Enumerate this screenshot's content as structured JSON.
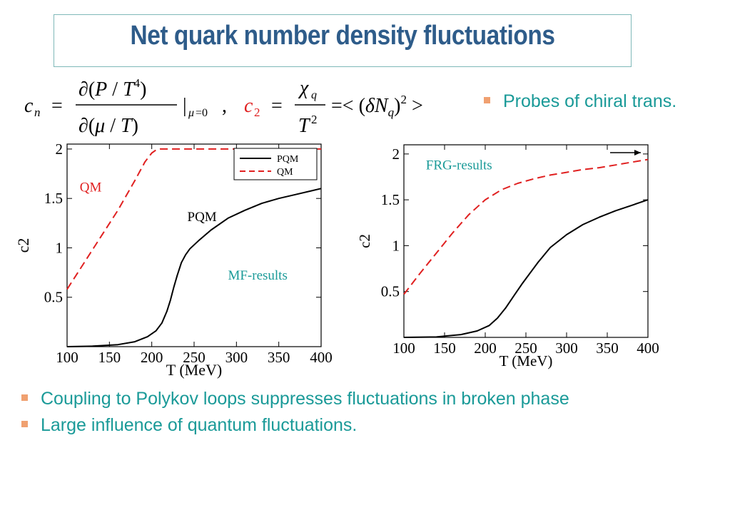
{
  "title": "Net quark number density fluctuations",
  "probe_text": "Probes of chiral trans.",
  "bullets": [
    "Coupling to Polykov loops suppresses fluctuations in broken phase",
    "Large influence of quantum fluctuations."
  ],
  "colors": {
    "title": "#2e5c8a",
    "accent": "#1a9a98",
    "bullet": "#f0a070",
    "qm": "#e02020",
    "pqm": "#000000"
  },
  "chart_data": [
    {
      "type": "line",
      "title": "",
      "xlabel": "T (MeV)",
      "ylabel": "c2",
      "xlim": [
        100,
        400
      ],
      "ylim": [
        0,
        2.05
      ],
      "xticks": [
        100,
        150,
        200,
        250,
        300,
        350,
        400
      ],
      "yticks": [
        0.5,
        1,
        1.5,
        2
      ],
      "ytick_labels": [
        "0.5",
        "1",
        "1.5",
        "2"
      ],
      "legend": "top-right",
      "annotations": [
        {
          "text": "QM",
          "x": 115,
          "y": 1.57,
          "color": "#e02020"
        },
        {
          "text": "PQM",
          "x": 242,
          "y": 1.27,
          "color": "#000000"
        },
        {
          "text": "MF-results",
          "x": 290,
          "y": 0.68,
          "color": "#1a9a98"
        }
      ],
      "series": [
        {
          "name": "PQM",
          "color": "#000000",
          "dash": false,
          "x": [
            100,
            130,
            160,
            180,
            195,
            205,
            212,
            218,
            222,
            226,
            230,
            235,
            240,
            245,
            255,
            270,
            290,
            310,
            330,
            350,
            370,
            390,
            400
          ],
          "y": [
            0.0,
            0.005,
            0.02,
            0.05,
            0.1,
            0.16,
            0.24,
            0.36,
            0.47,
            0.6,
            0.72,
            0.85,
            0.93,
            0.99,
            1.07,
            1.18,
            1.3,
            1.38,
            1.45,
            1.5,
            1.54,
            1.58,
            1.6
          ]
        },
        {
          "name": "QM",
          "color": "#e02020",
          "dash": true,
          "x": [
            100,
            130,
            160,
            180,
            192,
            200,
            205,
            210,
            220,
            250,
            300,
            350,
            400
          ],
          "y": [
            0.58,
            0.98,
            1.38,
            1.68,
            1.87,
            1.96,
            1.99,
            2.0,
            2.0,
            2.0,
            2.0,
            2.0,
            2.0
          ]
        }
      ]
    },
    {
      "type": "line",
      "title": "",
      "xlabel": "T (MeV)",
      "ylabel": "c2",
      "xlim": [
        100,
        400
      ],
      "ylim": [
        0,
        2.1
      ],
      "xticks": [
        100,
        150,
        200,
        250,
        300,
        350,
        400
      ],
      "yticks": [
        0.5,
        1,
        1.5,
        2
      ],
      "ytick_labels": [
        "0.5",
        "1",
        "1.5",
        "2"
      ],
      "legend": "none",
      "annotations": [
        {
          "text": "FRG-results",
          "x": 127,
          "y": 1.83,
          "color": "#1a9a98"
        }
      ],
      "series": [
        {
          "name": "",
          "color": "#000000",
          "dash": false,
          "x": [
            100,
            140,
            170,
            190,
            205,
            215,
            225,
            235,
            245,
            255,
            265,
            280,
            300,
            320,
            340,
            360,
            380,
            400
          ],
          "y": [
            0.0,
            0.005,
            0.03,
            0.07,
            0.13,
            0.21,
            0.32,
            0.45,
            0.58,
            0.7,
            0.82,
            0.98,
            1.12,
            1.23,
            1.31,
            1.38,
            1.44,
            1.5
          ]
        },
        {
          "name": "",
          "color": "#e02020",
          "dash": true,
          "x": [
            100,
            120,
            140,
            160,
            180,
            200,
            220,
            240,
            260,
            280,
            300,
            320,
            340,
            360,
            380,
            400
          ],
          "y": [
            0.47,
            0.7,
            0.92,
            1.14,
            1.34,
            1.5,
            1.61,
            1.68,
            1.73,
            1.77,
            1.8,
            1.83,
            1.85,
            1.88,
            1.91,
            1.94
          ]
        }
      ]
    }
  ]
}
